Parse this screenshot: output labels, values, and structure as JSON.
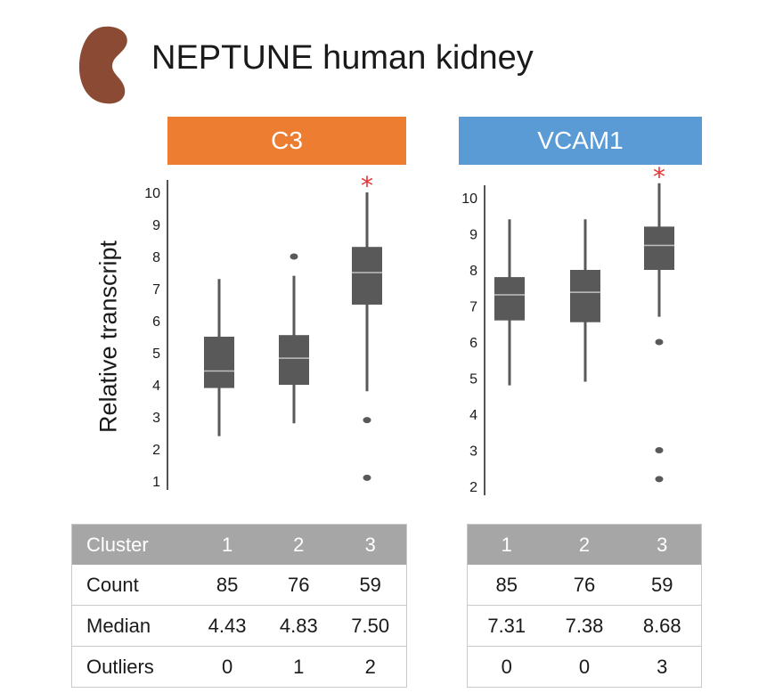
{
  "title": "NEPTUNE human kidney",
  "icon": "kidney-icon",
  "colors": {
    "kidney": "#8b4a33",
    "c3_header": "#ed7d31",
    "vcam1_header": "#5b9bd5",
    "box": "#595959",
    "median_line": "#bfbfbf",
    "star": "#e53030",
    "table_header": "#a6a6a6"
  },
  "ylabel": "Relative transcript",
  "significance_marker": "*",
  "chart_data": [
    {
      "type": "box",
      "title": "C3",
      "ylabel": "Relative transcript",
      "yticks": [
        "1",
        "2",
        "3",
        "4",
        "5",
        "6",
        "7",
        "8",
        "9",
        "10"
      ],
      "ylim": [
        1,
        10
      ],
      "categories": [
        "1",
        "2",
        "3"
      ],
      "boxes": [
        {
          "cluster": "1",
          "min": 2.4,
          "q1": 3.9,
          "median": 4.43,
          "q3": 5.5,
          "max": 7.3,
          "outliers": []
        },
        {
          "cluster": "2",
          "min": 2.8,
          "q1": 4.0,
          "median": 4.83,
          "q3": 5.55,
          "max": 7.4,
          "outliers": [
            8.0
          ]
        },
        {
          "cluster": "3",
          "min": 3.8,
          "q1": 6.5,
          "median": 7.5,
          "q3": 8.3,
          "max": 10.0,
          "outliers": [
            2.9,
            1.1
          ]
        }
      ],
      "significant": [
        false,
        false,
        true
      ]
    },
    {
      "type": "box",
      "title": "VCAM1",
      "yticks": [
        "2",
        "3",
        "4",
        "5",
        "6",
        "7",
        "8",
        "9",
        "10"
      ],
      "ylim": [
        2,
        10
      ],
      "categories": [
        "1",
        "2",
        "3"
      ],
      "boxes": [
        {
          "cluster": "1",
          "min": 4.8,
          "q1": 6.6,
          "median": 7.31,
          "q3": 7.8,
          "max": 9.4,
          "outliers": []
        },
        {
          "cluster": "2",
          "min": 4.9,
          "q1": 6.55,
          "median": 7.38,
          "q3": 8.0,
          "max": 9.4,
          "outliers": []
        },
        {
          "cluster": "3",
          "min": 6.7,
          "q1": 8.0,
          "median": 8.68,
          "q3": 9.2,
          "max": 10.4,
          "outliers": [
            6.0,
            3.0,
            2.2
          ]
        }
      ],
      "significant": [
        false,
        false,
        true
      ]
    }
  ],
  "tables": {
    "c3": {
      "header": [
        "Cluster",
        "1",
        "2",
        "3"
      ],
      "rows": [
        [
          "Count",
          "85",
          "76",
          "59"
        ],
        [
          "Median",
          "4.43",
          "4.83",
          "7.50"
        ],
        [
          "Outliers",
          "0",
          "1",
          "2"
        ]
      ]
    },
    "vcam1": {
      "header": [
        "1",
        "2",
        "3"
      ],
      "rows": [
        [
          "85",
          "76",
          "59"
        ],
        [
          "7.31",
          "7.38",
          "8.68"
        ],
        [
          "0",
          "0",
          "3"
        ]
      ]
    }
  }
}
